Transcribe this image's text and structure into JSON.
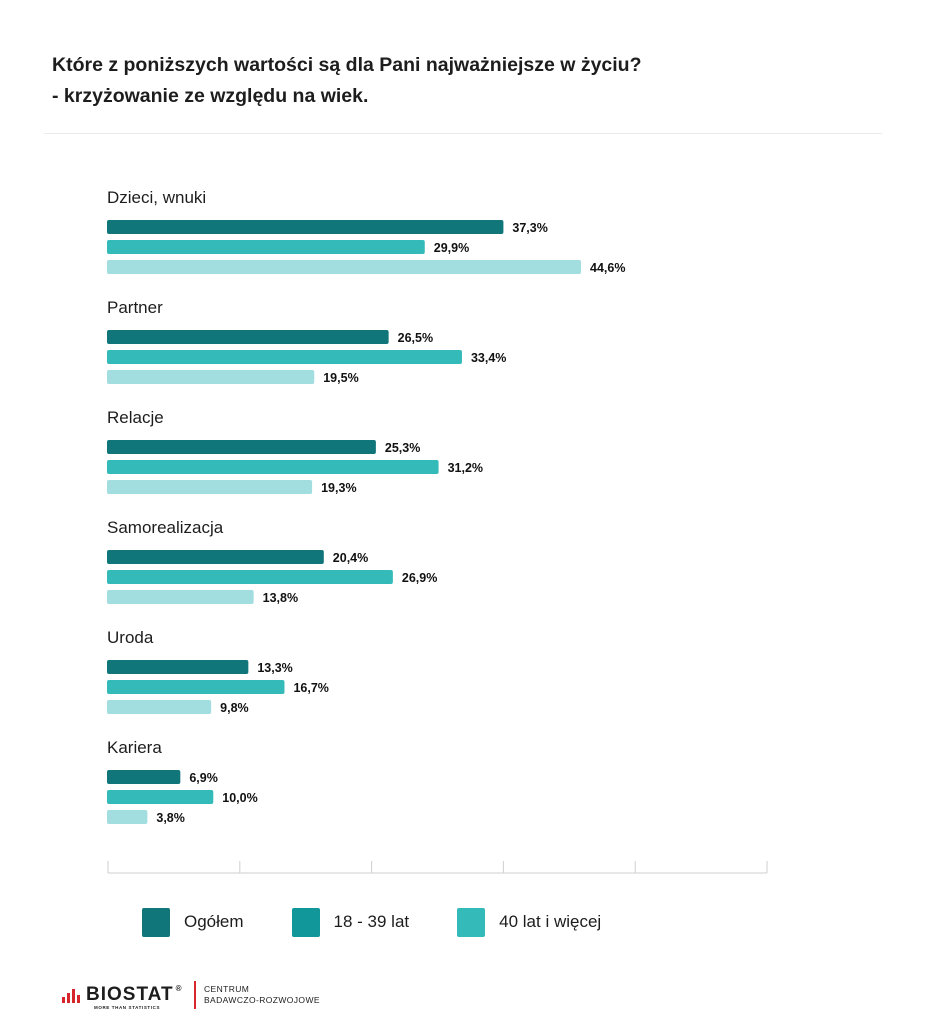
{
  "title": {
    "line1": "Które z poniższych wartości są dla Pani najważniejsze w życiu?",
    "line2": "- krzyżowanie ze względu na wiek."
  },
  "colors": {
    "ogolem": "#11767a",
    "age_18_39": "#35baba",
    "age_40_plus": "#a2dedf",
    "axis": "#cfcfcf",
    "brand_red": "#d7262b"
  },
  "chart_data": {
    "type": "bar",
    "orientation": "horizontal",
    "categories": [
      "Dzieci, wnuki",
      "Partner",
      "Relacje",
      "Samorealizacja",
      "Uroda",
      "Kariera"
    ],
    "series": [
      {
        "name": "Ogółem",
        "values": [
          37.3,
          26.5,
          25.3,
          20.4,
          13.3,
          6.9
        ],
        "labels": [
          "37,3%",
          "26,5%",
          "25,3%",
          "20,4%",
          "13,3%",
          "6,9%"
        ]
      },
      {
        "name": "18 - 39 lat",
        "values": [
          29.9,
          33.4,
          31.2,
          26.9,
          16.7,
          10.0
        ],
        "labels": [
          "29,9%",
          "33,4%",
          "31,2%",
          "26,9%",
          "16,7%",
          "10,0%"
        ]
      },
      {
        "name": "40 lat i więcej",
        "values": [
          44.6,
          19.5,
          19.3,
          13.8,
          9.8,
          3.8
        ],
        "labels": [
          "44,6%",
          "19,5%",
          "19,3%",
          "13,8%",
          "9,8%",
          "3,8%"
        ]
      }
    ],
    "xlim": [
      0,
      50
    ],
    "grid": false,
    "legend_position": "bottom"
  },
  "legend": [
    {
      "label": "Ogółem",
      "color": "#11767a"
    },
    {
      "label": "18 - 39 lat",
      "color": "#11969a"
    },
    {
      "label": "40 lat i więcej",
      "color": "#35baba"
    }
  ],
  "logo": {
    "name": "BIOSTAT",
    "registered": "®",
    "tagline": "MORE THAN STATISTICS",
    "side_line1": "CENTRUM",
    "side_line2": "BADAWCZO-ROZWOJOWE"
  }
}
